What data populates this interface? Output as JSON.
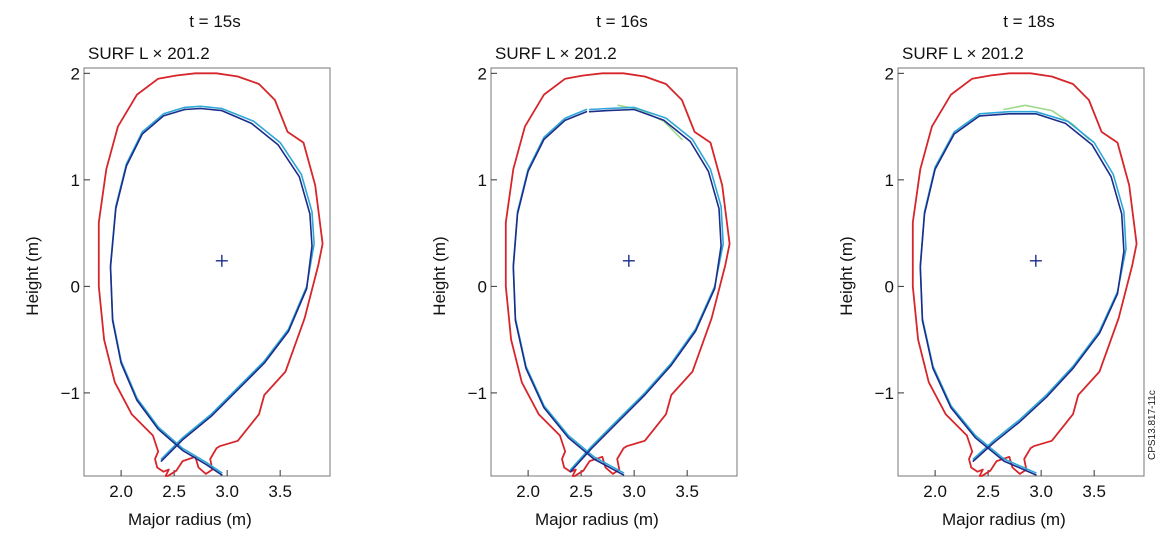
{
  "chart_data": [
    {
      "type": "line",
      "title": "t = 15s",
      "subtitle": "SURF L × 201.2",
      "xlabel": "Major radius (m)",
      "ylabel": "Height (m)",
      "xlim": [
        1.65,
        3.97
      ],
      "ylim": [
        -1.78,
        2.05
      ],
      "xticks": [
        "2.0",
        "2.5",
        "3.0",
        "3.5"
      ],
      "yticks": [
        "−1",
        "0",
        "1",
        "2"
      ],
      "grid": false,
      "center": [
        2.95,
        0.24
      ],
      "series": [
        {
          "color": "#d6262b",
          "x": [
            2.52,
            2.35,
            2.15,
            1.97,
            1.86,
            1.79,
            1.79,
            1.84,
            1.94,
            2.1,
            2.3,
            2.35,
            2.32,
            2.34,
            2.4,
            2.45,
            2.42,
            2.44,
            2.52,
            2.58,
            2.7,
            2.73,
            2.8,
            2.86,
            2.84,
            2.9,
            2.93,
            3.1,
            3.3,
            3.35,
            3.55,
            3.73,
            3.86,
            3.9,
            3.83,
            3.72,
            3.57,
            3.45,
            3.3,
            3.1,
            2.9,
            2.7,
            2.52
          ],
          "y": [
            1.98,
            1.95,
            1.8,
            1.5,
            1.1,
            0.6,
            0.0,
            -0.5,
            -0.9,
            -1.2,
            -1.4,
            -1.55,
            -1.62,
            -1.7,
            -1.74,
            -1.72,
            -1.78,
            -1.78,
            -1.73,
            -1.64,
            -1.6,
            -1.7,
            -1.76,
            -1.72,
            -1.62,
            -1.52,
            -1.5,
            -1.45,
            -1.2,
            -1.02,
            -0.8,
            -0.3,
            0.2,
            0.4,
            0.95,
            1.35,
            1.45,
            1.75,
            1.9,
            1.97,
            2.0,
            2.0,
            1.98
          ]
        },
        {
          "color": "#2ea7d8",
          "x": [
            2.6,
            2.4,
            2.2,
            2.05,
            1.95,
            1.9,
            1.92,
            2.0,
            2.15,
            2.35,
            2.58,
            2.8,
            2.95
          ],
          "y": [
            1.68,
            1.62,
            1.45,
            1.15,
            0.75,
            0.2,
            -0.3,
            -0.7,
            -1.05,
            -1.32,
            -1.52,
            -1.65,
            -1.75
          ]
        },
        {
          "color": "#2ea7d8",
          "x": [
            2.38,
            2.58,
            2.85,
            3.1,
            3.35,
            3.58,
            3.75,
            3.82,
            3.8,
            3.7,
            3.5,
            3.25,
            2.95,
            2.75,
            2.6
          ],
          "y": [
            -1.62,
            -1.42,
            -1.2,
            -0.95,
            -0.7,
            -0.4,
            0.0,
            0.4,
            0.7,
            1.05,
            1.35,
            1.55,
            1.67,
            1.69,
            1.68
          ]
        },
        {
          "color": "#1c2d8a",
          "x": [
            2.6,
            2.4,
            2.2,
            2.05,
            1.95,
            1.9,
            1.92,
            2.0,
            2.15,
            2.35,
            2.58,
            2.8,
            2.95
          ],
          "y": [
            1.66,
            1.6,
            1.43,
            1.13,
            0.73,
            0.18,
            -0.32,
            -0.72,
            -1.07,
            -1.34,
            -1.54,
            -1.67,
            -1.77
          ]
        },
        {
          "color": "#1c2d8a",
          "x": [
            2.38,
            2.58,
            2.85,
            3.1,
            3.35,
            3.58,
            3.75,
            3.8,
            3.78,
            3.68,
            3.48,
            3.23,
            2.95,
            2.75,
            2.6
          ],
          "y": [
            -1.64,
            -1.44,
            -1.22,
            -0.97,
            -0.72,
            -0.42,
            -0.02,
            0.38,
            0.68,
            1.03,
            1.33,
            1.53,
            1.65,
            1.67,
            1.66
          ]
        }
      ]
    },
    {
      "type": "line",
      "title": "t = 16s",
      "subtitle": "SURF L × 201.2",
      "xlabel": "Major radius (m)",
      "ylabel": "Height (m)",
      "xlim": [
        1.65,
        3.97
      ],
      "ylim": [
        -1.78,
        2.05
      ],
      "xticks": [
        "2.0",
        "2.5",
        "3.0",
        "3.5"
      ],
      "yticks": [
        "−1",
        "0",
        "1",
        "2"
      ],
      "grid": false,
      "center": [
        2.95,
        0.24
      ],
      "series": [
        {
          "color": "#d6262b",
          "x": [
            2.52,
            2.35,
            2.15,
            1.97,
            1.86,
            1.79,
            1.79,
            1.84,
            1.94,
            2.1,
            2.3,
            2.35,
            2.32,
            2.34,
            2.4,
            2.45,
            2.42,
            2.44,
            2.52,
            2.58,
            2.7,
            2.73,
            2.8,
            2.86,
            2.84,
            2.9,
            2.93,
            3.1,
            3.3,
            3.35,
            3.55,
            3.73,
            3.86,
            3.9,
            3.83,
            3.72,
            3.57,
            3.45,
            3.3,
            3.1,
            2.9,
            2.7,
            2.52
          ],
          "y": [
            1.98,
            1.95,
            1.8,
            1.5,
            1.1,
            0.6,
            0.0,
            -0.5,
            -0.9,
            -1.2,
            -1.4,
            -1.55,
            -1.62,
            -1.7,
            -1.74,
            -1.72,
            -1.78,
            -1.78,
            -1.73,
            -1.64,
            -1.6,
            -1.7,
            -1.76,
            -1.72,
            -1.62,
            -1.52,
            -1.5,
            -1.45,
            -1.2,
            -1.02,
            -0.8,
            -0.3,
            0.2,
            0.4,
            0.95,
            1.35,
            1.45,
            1.75,
            1.9,
            1.97,
            2.0,
            2.0,
            1.98
          ]
        },
        {
          "color": "#9fd98b",
          "x": [
            2.85,
            3.05,
            3.28,
            3.45
          ],
          "y": [
            1.7,
            1.66,
            1.55,
            1.38
          ]
        },
        {
          "color": "#2ea7d8",
          "x": [
            2.55,
            2.35,
            2.15,
            2.0,
            1.9,
            1.86,
            1.88,
            1.98,
            2.15,
            2.38,
            2.62,
            2.9
          ],
          "y": [
            1.66,
            1.58,
            1.4,
            1.1,
            0.7,
            0.2,
            -0.3,
            -0.75,
            -1.12,
            -1.4,
            -1.6,
            -1.75
          ]
        },
        {
          "color": "#2ea7d8",
          "x": [
            2.4,
            2.6,
            2.85,
            3.1,
            3.35,
            3.58,
            3.76,
            3.84,
            3.82,
            3.72,
            3.55,
            3.3,
            3.0,
            2.75,
            2.58
          ],
          "y": [
            -1.72,
            -1.5,
            -1.25,
            -1.0,
            -0.72,
            -0.4,
            0.0,
            0.4,
            0.75,
            1.1,
            1.38,
            1.58,
            1.68,
            1.67,
            1.66
          ]
        },
        {
          "color": "#1c2d8a",
          "x": [
            2.55,
            2.35,
            2.15,
            2.0,
            1.9,
            1.86,
            1.88,
            1.98,
            2.15,
            2.38,
            2.62,
            2.9
          ],
          "y": [
            1.64,
            1.56,
            1.38,
            1.08,
            0.68,
            0.18,
            -0.32,
            -0.77,
            -1.14,
            -1.42,
            -1.62,
            -1.77
          ]
        },
        {
          "color": "#1c2d8a",
          "x": [
            2.4,
            2.6,
            2.85,
            3.1,
            3.35,
            3.58,
            3.76,
            3.82,
            3.8,
            3.7,
            3.53,
            3.28,
            3.0,
            2.75,
            2.58
          ],
          "y": [
            -1.74,
            -1.52,
            -1.27,
            -1.02,
            -0.74,
            -0.42,
            -0.02,
            0.38,
            0.73,
            1.08,
            1.36,
            1.56,
            1.66,
            1.65,
            1.64
          ]
        }
      ]
    },
    {
      "type": "line",
      "title": "t = 18s",
      "subtitle": "SURF L × 201.2",
      "xlabel": "Major radius (m)",
      "ylabel": "Height (m)",
      "xlim": [
        1.65,
        3.97
      ],
      "ylim": [
        -1.78,
        2.05
      ],
      "xticks": [
        "2.0",
        "2.5",
        "3.0",
        "3.5"
      ],
      "yticks": [
        "−1",
        "0",
        "1",
        "2"
      ],
      "grid": false,
      "center": [
        2.95,
        0.24
      ],
      "series": [
        {
          "color": "#d6262b",
          "x": [
            2.52,
            2.35,
            2.15,
            1.97,
            1.86,
            1.79,
            1.79,
            1.84,
            1.94,
            2.1,
            2.3,
            2.35,
            2.32,
            2.34,
            2.4,
            2.45,
            2.42,
            2.44,
            2.52,
            2.58,
            2.7,
            2.73,
            2.8,
            2.86,
            2.84,
            2.9,
            2.93,
            3.1,
            3.3,
            3.35,
            3.55,
            3.73,
            3.86,
            3.9,
            3.83,
            3.72,
            3.57,
            3.45,
            3.3,
            3.1,
            2.9,
            2.7,
            2.52
          ],
          "y": [
            1.98,
            1.95,
            1.8,
            1.5,
            1.1,
            0.6,
            0.0,
            -0.5,
            -0.9,
            -1.2,
            -1.4,
            -1.55,
            -1.62,
            -1.7,
            -1.74,
            -1.72,
            -1.78,
            -1.78,
            -1.73,
            -1.64,
            -1.6,
            -1.7,
            -1.76,
            -1.72,
            -1.62,
            -1.52,
            -1.5,
            -1.45,
            -1.2,
            -1.02,
            -0.8,
            -0.3,
            0.2,
            0.4,
            0.95,
            1.35,
            1.45,
            1.75,
            1.9,
            1.97,
            2.0,
            2.0,
            1.98
          ]
        },
        {
          "color": "#9fd98b",
          "x": [
            2.65,
            2.85,
            3.1,
            3.3,
            3.45
          ],
          "y": [
            1.66,
            1.7,
            1.65,
            1.52,
            1.38
          ]
        },
        {
          "color": "#2ea7d8",
          "x": [
            2.42,
            2.18,
            2.0,
            1.9,
            1.86,
            1.88,
            1.98,
            2.15,
            2.38,
            2.65,
            2.95
          ],
          "y": [
            1.62,
            1.45,
            1.12,
            0.7,
            0.2,
            -0.3,
            -0.75,
            -1.12,
            -1.4,
            -1.62,
            -1.75
          ]
        },
        {
          "color": "#2ea7d8",
          "x": [
            2.36,
            2.55,
            2.8,
            3.05,
            3.3,
            3.55,
            3.72,
            3.8,
            3.78,
            3.68,
            3.5,
            3.25,
            2.95,
            2.7,
            2.42
          ],
          "y": [
            -1.62,
            -1.45,
            -1.25,
            -1.02,
            -0.75,
            -0.42,
            -0.05,
            0.35,
            0.7,
            1.05,
            1.35,
            1.55,
            1.64,
            1.64,
            1.62
          ]
        },
        {
          "color": "#1c2d8a",
          "x": [
            2.42,
            2.18,
            2.0,
            1.9,
            1.86,
            1.88,
            1.98,
            2.15,
            2.38,
            2.65,
            2.95
          ],
          "y": [
            1.6,
            1.43,
            1.1,
            0.68,
            0.18,
            -0.32,
            -0.77,
            -1.14,
            -1.42,
            -1.64,
            -1.77
          ]
        },
        {
          "color": "#1c2d8a",
          "x": [
            2.36,
            2.55,
            2.8,
            3.05,
            3.3,
            3.55,
            3.72,
            3.78,
            3.76,
            3.66,
            3.48,
            3.23,
            2.95,
            2.7,
            2.42
          ],
          "y": [
            -1.64,
            -1.47,
            -1.27,
            -1.04,
            -0.77,
            -0.44,
            -0.07,
            0.33,
            0.68,
            1.03,
            1.33,
            1.53,
            1.62,
            1.62,
            1.6
          ]
        }
      ]
    }
  ],
  "figure_code": "CPS13.817-11c"
}
